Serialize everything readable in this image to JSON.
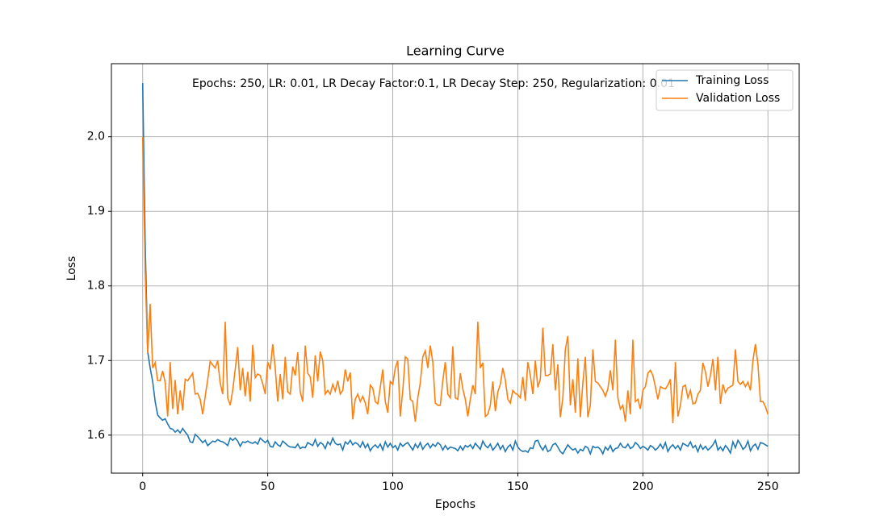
{
  "chart_data": {
    "type": "line",
    "title": "Learning Curve",
    "xlabel": "Epochs",
    "ylabel": "Loss",
    "annotation": "Epochs: 250, LR: 0.01, LR Decay Factor:0.1, LR Decay Step: 250, Regularization: 0.01",
    "xlim": [
      -12.5,
      262.5
    ],
    "ylim": [
      1.549,
      2.098
    ],
    "xticks": [
      0,
      50,
      100,
      150,
      200,
      250
    ],
    "yticks": [
      1.6,
      1.7,
      1.8,
      1.9,
      {
        "value": 2,
        "label": "2.0"
      }
    ],
    "grid": true,
    "legend": "upper right",
    "x": [
      0,
      1,
      2,
      3,
      4,
      5,
      6,
      7,
      8,
      9,
      10,
      11,
      12,
      13,
      14,
      15,
      16,
      17,
      18,
      19,
      20,
      21,
      22,
      23,
      24,
      25,
      26,
      27,
      28,
      29,
      30,
      31,
      32,
      33,
      34,
      35,
      36,
      37,
      38,
      39,
      40,
      41,
      42,
      43,
      44,
      45,
      46,
      47,
      48,
      49,
      50,
      51,
      52,
      53,
      54,
      55,
      56,
      57,
      58,
      59,
      60,
      61,
      62,
      63,
      64,
      65,
      66,
      67,
      68,
      69,
      70,
      71,
      72,
      73,
      74,
      75,
      76,
      77,
      78,
      79,
      80,
      81,
      82,
      83,
      84,
      85,
      86,
      87,
      88,
      89,
      90,
      91,
      92,
      93,
      94,
      95,
      96,
      97,
      98,
      99,
      100,
      101,
      102,
      103,
      104,
      105,
      106,
      107,
      108,
      109,
      110,
      111,
      112,
      113,
      114,
      115,
      116,
      117,
      118,
      119,
      120,
      121,
      122,
      123,
      124,
      125,
      126,
      127,
      128,
      129,
      130,
      131,
      132,
      133,
      134,
      135,
      136,
      137,
      138,
      139,
      140,
      141,
      142,
      143,
      144,
      145,
      146,
      147,
      148,
      149,
      150,
      151,
      152,
      153,
      154,
      155,
      156,
      157,
      158,
      159,
      160,
      161,
      162,
      163,
      164,
      165,
      166,
      167,
      168,
      169,
      170,
      171,
      172,
      173,
      174,
      175,
      176,
      177,
      178,
      179,
      180,
      181,
      182,
      183,
      184,
      185,
      186,
      187,
      188,
      189,
      190,
      191,
      192,
      193,
      194,
      195,
      196,
      197,
      198,
      199,
      200,
      201,
      202,
      203,
      204,
      205,
      206,
      207,
      208,
      209,
      210,
      211,
      212,
      213,
      214,
      215,
      216,
      217,
      218,
      219,
      220,
      221,
      222,
      223,
      224,
      225,
      226,
      227,
      228,
      229,
      230,
      231,
      232,
      233,
      234,
      235,
      236,
      237,
      238,
      239,
      240,
      241,
      242,
      243,
      244,
      245,
      246,
      247,
      248,
      249,
      250
    ],
    "series": [
      {
        "name": "Training Loss",
        "color": "#1f77b4",
        "values": [
          2.072,
          1.86,
          1.712,
          1.69,
          1.672,
          1.645,
          1.627,
          1.623,
          1.62,
          1.622,
          1.615,
          1.609,
          1.608,
          1.604,
          1.607,
          1.603,
          1.609,
          1.604,
          1.6,
          1.591,
          1.59,
          1.601,
          1.598,
          1.594,
          1.59,
          1.593,
          1.586,
          1.589,
          1.592,
          1.591,
          1.594,
          1.592,
          1.591,
          1.589,
          1.586,
          1.596,
          1.593,
          1.596,
          1.592,
          1.585,
          1.591,
          1.59,
          1.592,
          1.59,
          1.589,
          1.591,
          1.588,
          1.596,
          1.593,
          1.59,
          1.593,
          1.585,
          1.584,
          1.591,
          1.587,
          1.585,
          1.592,
          1.589,
          1.586,
          1.584,
          1.584,
          1.583,
          1.588,
          1.582,
          1.584,
          1.583,
          1.59,
          1.588,
          1.586,
          1.594,
          1.585,
          1.59,
          1.588,
          1.582,
          1.591,
          1.587,
          1.596,
          1.589,
          1.587,
          1.588,
          1.58,
          1.591,
          1.588,
          1.593,
          1.587,
          1.59,
          1.588,
          1.584,
          1.591,
          1.583,
          1.588,
          1.579,
          1.584,
          1.587,
          1.583,
          1.588,
          1.58,
          1.591,
          1.584,
          1.589,
          1.583,
          1.586,
          1.58,
          1.589,
          1.585,
          1.588,
          1.59,
          1.585,
          1.58,
          1.588,
          1.583,
          1.59,
          1.581,
          1.586,
          1.589,
          1.583,
          1.588,
          1.585,
          1.59,
          1.587,
          1.58,
          1.586,
          1.581,
          1.584,
          1.583,
          1.582,
          1.579,
          1.585,
          1.58,
          1.586,
          1.584,
          1.587,
          1.582,
          1.589,
          1.585,
          1.581,
          1.592,
          1.586,
          1.583,
          1.588,
          1.58,
          1.584,
          1.589,
          1.581,
          1.586,
          1.578,
          1.584,
          1.587,
          1.58,
          1.592,
          1.584,
          1.58,
          1.578,
          1.579,
          1.577,
          1.583,
          1.582,
          1.592,
          1.593,
          1.585,
          1.58,
          1.586,
          1.578,
          1.58,
          1.587,
          1.589,
          1.584,
          1.578,
          1.575,
          1.581,
          1.587,
          1.583,
          1.58,
          1.582,
          1.576,
          1.581,
          1.579,
          1.585,
          1.583,
          1.575,
          1.585,
          1.583,
          1.584,
          1.581,
          1.575,
          1.584,
          1.58,
          1.586,
          1.578,
          1.582,
          1.583,
          1.589,
          1.584,
          1.583,
          1.588,
          1.582,
          1.584,
          1.59,
          1.587,
          1.582,
          1.585,
          1.583,
          1.58,
          1.586,
          1.584,
          1.58,
          1.583,
          1.588,
          1.582,
          1.59,
          1.578,
          1.584,
          1.587,
          1.582,
          1.586,
          1.58,
          1.589,
          1.587,
          1.585,
          1.591,
          1.583,
          1.586,
          1.578,
          1.587,
          1.581,
          1.585,
          1.58,
          1.583,
          1.587,
          1.593,
          1.58,
          1.584,
          1.579,
          1.586,
          1.582,
          1.576,
          1.591,
          1.583,
          1.593,
          1.588,
          1.581,
          1.584,
          1.592,
          1.579,
          1.585,
          1.588,
          1.581,
          1.59,
          1.589,
          1.587,
          1.585
        ]
      },
      {
        "name": "Validation Loss",
        "color": "#ff7f0e",
        "values": [
          2.0,
          1.82,
          1.71,
          1.776,
          1.69,
          1.697,
          1.673,
          1.673,
          1.686,
          1.671,
          1.625,
          1.698,
          1.635,
          1.674,
          1.628,
          1.66,
          1.633,
          1.675,
          1.673,
          1.678,
          1.683,
          1.655,
          1.656,
          1.648,
          1.628,
          1.652,
          1.674,
          1.699,
          1.694,
          1.69,
          1.7,
          1.67,
          1.655,
          1.752,
          1.65,
          1.64,
          1.66,
          1.688,
          1.718,
          1.66,
          1.69,
          1.652,
          1.685,
          1.645,
          1.721,
          1.677,
          1.682,
          1.68,
          1.669,
          1.655,
          1.698,
          1.688,
          1.722,
          1.69,
          1.645,
          1.682,
          1.648,
          1.705,
          1.658,
          1.655,
          1.692,
          1.68,
          1.711,
          1.658,
          1.645,
          1.72,
          1.683,
          1.678,
          1.65,
          1.707,
          1.672,
          1.712,
          1.7,
          1.655,
          1.66,
          1.655,
          1.668,
          1.659,
          1.673,
          1.655,
          1.66,
          1.688,
          1.672,
          1.684,
          1.621,
          1.648,
          1.655,
          1.645,
          1.652,
          1.643,
          1.628,
          1.667,
          1.663,
          1.645,
          1.642,
          1.664,
          1.688,
          1.645,
          1.63,
          1.672,
          1.668,
          1.69,
          1.7,
          1.625,
          1.66,
          1.705,
          1.702,
          1.648,
          1.645,
          1.618,
          1.65,
          1.67,
          1.705,
          1.713,
          1.69,
          1.72,
          1.698,
          1.643,
          1.64,
          1.64,
          1.673,
          1.698,
          1.655,
          1.65,
          1.719,
          1.65,
          1.648,
          1.683,
          1.662,
          1.648,
          1.625,
          1.648,
          1.667,
          1.655,
          1.752,
          1.69,
          1.697,
          1.625,
          1.628,
          1.64,
          1.672,
          1.632,
          1.658,
          1.668,
          1.69,
          1.674,
          1.648,
          1.643,
          1.66,
          1.656,
          1.654,
          1.65,
          1.678,
          1.646,
          1.698,
          1.68,
          1.655,
          1.7,
          1.664,
          1.675,
          1.744,
          1.68,
          1.68,
          1.682,
          1.722,
          1.66,
          1.695,
          1.624,
          1.65,
          1.715,
          1.733,
          1.64,
          1.675,
          1.63,
          1.703,
          1.624,
          1.67,
          1.705,
          1.624,
          1.64,
          1.715,
          1.672,
          1.67,
          1.665,
          1.66,
          1.652,
          1.662,
          1.687,
          1.66,
          1.728,
          1.65,
          1.635,
          1.64,
          1.618,
          1.66,
          1.628,
          1.728,
          1.645,
          1.648,
          1.635,
          1.66,
          1.665,
          1.683,
          1.687,
          1.68,
          1.665,
          1.648,
          1.665,
          1.663,
          1.662,
          1.667,
          1.675,
          1.616,
          1.698,
          1.625,
          1.64,
          1.665,
          1.667,
          1.65,
          1.66,
          1.642,
          1.643,
          1.655,
          1.66,
          1.697,
          1.685,
          1.665,
          1.68,
          1.702,
          1.66,
          1.705,
          1.642,
          1.668,
          1.657,
          1.663,
          1.665,
          1.667,
          1.715,
          1.672,
          1.668,
          1.672,
          1.665,
          1.671,
          1.66,
          1.7,
          1.722,
          1.695,
          1.645,
          1.645,
          1.638,
          1.628
        ]
      }
    ]
  }
}
